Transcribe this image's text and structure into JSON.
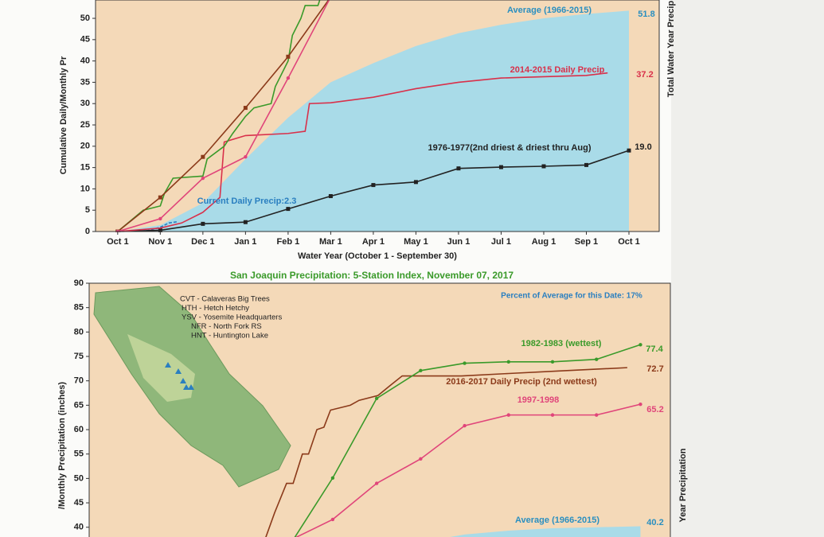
{
  "chart_data": [
    {
      "type": "line",
      "xlabel": "Water Year (October 1 - September 30)",
      "ylabel": "Cumulative Daily/Monthly Pr",
      "y2label": "Total Water Year Precipi",
      "xlim": [
        -0.52,
        12.71
      ],
      "ylim": [
        0,
        54.3
      ],
      "xticks": [
        {
          "value": 0,
          "label": "Oct 1"
        },
        {
          "value": 1,
          "label": "Nov 1"
        },
        {
          "value": 2,
          "label": "Dec 1"
        },
        {
          "value": 3,
          "label": "Jan 1"
        },
        {
          "value": 4,
          "label": "Feb 1"
        },
        {
          "value": 5,
          "label": "Mar 1"
        },
        {
          "value": 6,
          "label": "Apr 1"
        },
        {
          "value": 7,
          "label": "May 1"
        },
        {
          "value": 8,
          "label": "Jun 1"
        },
        {
          "value": 9,
          "label": "Jul 1"
        },
        {
          "value": 10,
          "label": "Aug 1"
        },
        {
          "value": 11,
          "label": "Sep 1"
        },
        {
          "value": 12,
          "label": "Oct 1"
        }
      ],
      "yticks": [
        0,
        5,
        10,
        15,
        20,
        25,
        30,
        35,
        40,
        45,
        50
      ],
      "series": [
        {
          "name": "Average (1966-2015)",
          "color": "#a9dbe8",
          "style": "area",
          "x": [
            0,
            1,
            2,
            3,
            4,
            5,
            6,
            7,
            8,
            9,
            10,
            11,
            12
          ],
          "values": [
            0,
            1.5,
            6.7,
            17,
            26.7,
            35,
            39.5,
            43.5,
            46.5,
            48.5,
            50,
            51,
            51.8
          ],
          "value_labels": [
            null,
            null,
            null,
            null,
            null,
            null,
            null,
            null,
            null,
            null,
            null,
            null,
            "51.8"
          ]
        },
        {
          "name": "Current Daily Precip:2.3",
          "color": "#2a7fc0",
          "style": "line",
          "x": [
            0,
            0.7,
            1,
            1.2,
            1.4
          ],
          "values": [
            0,
            0.2,
            1,
            2,
            2.3
          ]
        },
        {
          "name": "1976-1977(2nd driest & driest thru Aug)",
          "color": "#222222",
          "style": "markers",
          "x": [
            0,
            1,
            2,
            3,
            4,
            5,
            6,
            7,
            8,
            9,
            10,
            11,
            12
          ],
          "values": [
            0,
            0.3,
            1.8,
            2.2,
            5.3,
            8.3,
            10.9,
            11.6,
            14.8,
            15.1,
            15.3,
            15.6,
            19.0
          ],
          "value_labels": [
            null,
            null,
            null,
            null,
            null,
            null,
            null,
            null,
            null,
            null,
            null,
            null,
            "19.0"
          ]
        },
        {
          "name": "2014-2015 Daily Precip",
          "color": "#d9304a",
          "style": "line",
          "x": [
            0,
            1,
            1.5,
            2,
            2.4,
            2.5,
            3,
            4,
            4.4,
            4.5,
            5,
            6,
            7,
            8,
            9,
            10,
            11,
            11.5
          ],
          "values": [
            0,
            0.8,
            2,
            4.5,
            8,
            21,
            22.5,
            23,
            23.5,
            30,
            30.2,
            31.5,
            33.5,
            35,
            36,
            36.3,
            36.6,
            37.2
          ],
          "value_labels": [
            null,
            null,
            null,
            null,
            null,
            null,
            null,
            null,
            null,
            null,
            null,
            null,
            null,
            null,
            null,
            null,
            null,
            "37.2"
          ]
        },
        {
          "color": "#3a9a2a",
          "style": "line",
          "x": [
            0,
            0.6,
            1,
            1.1,
            1.3,
            2,
            2.1,
            2.5,
            2.7,
            3,
            3.2,
            3.6,
            3.7,
            4,
            4.1,
            4.3,
            4.4,
            4.7,
            4.8
          ],
          "values": [
            0,
            5,
            6,
            9,
            12.5,
            13,
            17,
            20,
            23,
            27,
            29,
            30,
            34,
            40,
            46,
            50,
            53,
            53,
            56
          ]
        },
        {
          "color": "#8b3a1a",
          "style": "markers",
          "x": [
            0,
            1,
            2,
            3,
            4,
            5
          ],
          "values": [
            0,
            8,
            17.5,
            29,
            41,
            55
          ]
        },
        {
          "color": "#e0457a",
          "style": "dots",
          "x": [
            0,
            1,
            2,
            3,
            4,
            5
          ],
          "values": [
            0,
            3,
            12.5,
            17.5,
            36,
            55
          ]
        }
      ]
    },
    {
      "type": "line",
      "title": "San Joaquin Precipitation: 5-Station Index, November 07, 2017",
      "subtitle": "Percent of Average for this Date: 17%",
      "ylabel": "/Monthly Precipitation (inches)",
      "y2label": "Year Precipitation",
      "annotations": [
        "CVT - Calaveras Big Trees",
        "HTH - Hetch Hetchy",
        "YSV - Yosemite Headquarters",
        "NFR - North Fork RS",
        "HNT - Huntington Lake"
      ],
      "xlim": [
        -0.54,
        12.68
      ],
      "ylim": [
        38,
        90
      ],
      "yticks": [
        40,
        45,
        50,
        55,
        60,
        65,
        70,
        75,
        80,
        85,
        90
      ],
      "series": [
        {
          "name": "Average (1966-2015)",
          "color": "#a9dbe8",
          "style": "area",
          "x": [
            7,
            8,
            9,
            10,
            11,
            12
          ],
          "values": [
            37,
            38.5,
            39.3,
            39.8,
            40,
            40.2
          ],
          "value_labels": [
            null,
            null,
            null,
            null,
            null,
            "40.2"
          ]
        },
        {
          "name": "2016-2017 Daily Precip (2nd wettest)",
          "color": "#8b3a1a",
          "style": "line",
          "x": [
            3.4,
            3.68,
            3.95,
            4.1,
            4.31,
            4.45,
            4.64,
            4.8,
            4.95,
            5.4,
            5.6,
            6.03,
            6.3,
            6.58,
            7.93,
            9,
            10.1,
            11.7
          ],
          "values": [
            36,
            43,
            49,
            49,
            55,
            55,
            60,
            60.5,
            64,
            65,
            66,
            67,
            69,
            71,
            71,
            71.5,
            72,
            72.7
          ],
          "value_labels": [
            null,
            null,
            null,
            null,
            null,
            null,
            null,
            null,
            null,
            null,
            null,
            null,
            null,
            null,
            null,
            null,
            null,
            "72.7"
          ]
        },
        {
          "name": "1997-1998",
          "color": "#e0457a",
          "style": "dots",
          "x": [
            3.5,
            5,
            6,
            7,
            8,
            9,
            10,
            11,
            12
          ],
          "values": [
            35,
            41.6,
            49,
            54,
            60.8,
            63,
            63,
            63,
            65.2
          ],
          "value_labels": [
            null,
            null,
            null,
            null,
            null,
            null,
            null,
            null,
            "65.2"
          ]
        },
        {
          "name": "1982-1983 (wettest)",
          "color": "#3a9a2a",
          "style": "dots",
          "x": [
            4,
            5,
            6,
            7,
            8,
            9,
            10,
            11,
            12
          ],
          "values": [
            36,
            50.1,
            66.4,
            72.1,
            73.6,
            73.9,
            73.9,
            74.4,
            77.4
          ],
          "value_labels": [
            null,
            null,
            null,
            null,
            null,
            null,
            null,
            null,
            "77.4"
          ]
        }
      ]
    }
  ]
}
